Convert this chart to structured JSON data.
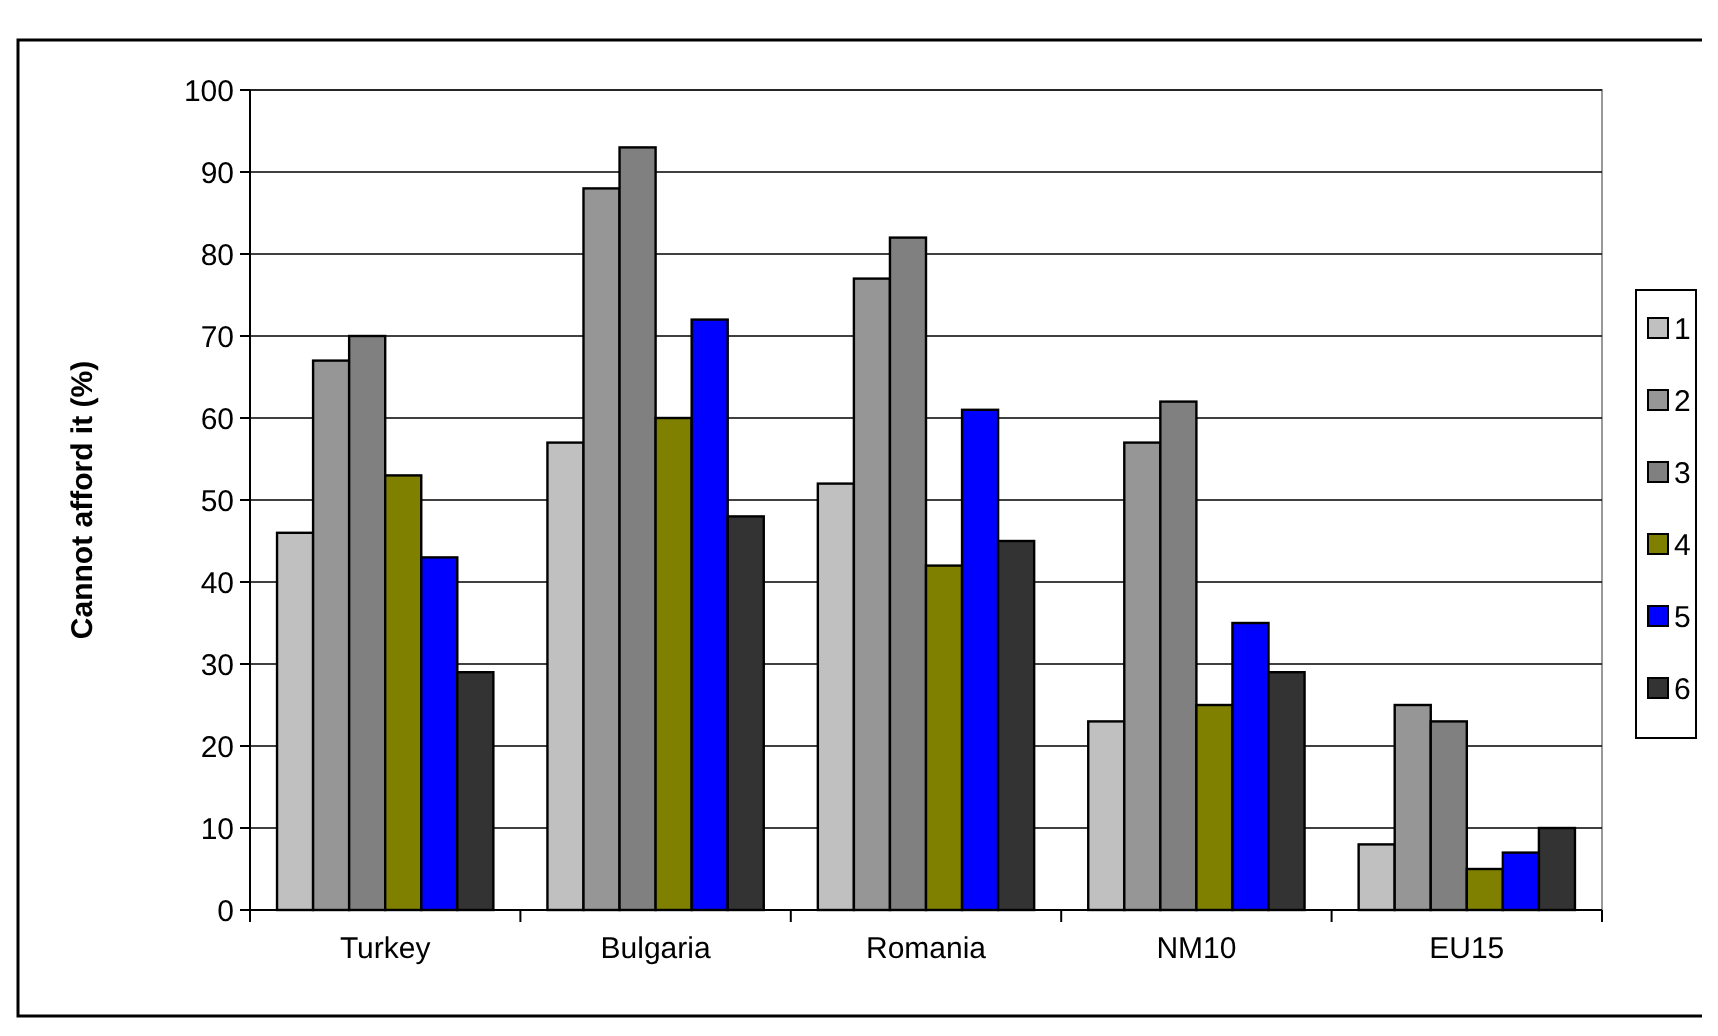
{
  "chart_data": {
    "type": "bar",
    "ylabel": "Cannot afford it (%)",
    "categories": [
      "Turkey",
      "Bulgaria",
      "Romania",
      "NM10",
      "EU15"
    ],
    "series": [
      {
        "name": "1",
        "color": "#c0c0c0",
        "values": [
          46,
          57,
          52,
          23,
          8
        ]
      },
      {
        "name": "2",
        "color": "#969696",
        "values": [
          67,
          88,
          77,
          57,
          25
        ]
      },
      {
        "name": "3",
        "color": "#808080",
        "values": [
          70,
          93,
          82,
          62,
          23
        ]
      },
      {
        "name": "4",
        "color": "#808000",
        "values": [
          53,
          60,
          42,
          25,
          5
        ]
      },
      {
        "name": "5",
        "color": "#0000ff",
        "values": [
          43,
          72,
          61,
          35,
          7
        ]
      },
      {
        "name": "6",
        "color": "#333333",
        "values": [
          29,
          48,
          45,
          29,
          10
        ]
      }
    ],
    "ylim": [
      0,
      100
    ],
    "yticks": [
      0,
      10,
      20,
      30,
      40,
      50,
      60,
      70,
      80,
      90,
      100
    ],
    "grid": "y",
    "legend": "right"
  }
}
